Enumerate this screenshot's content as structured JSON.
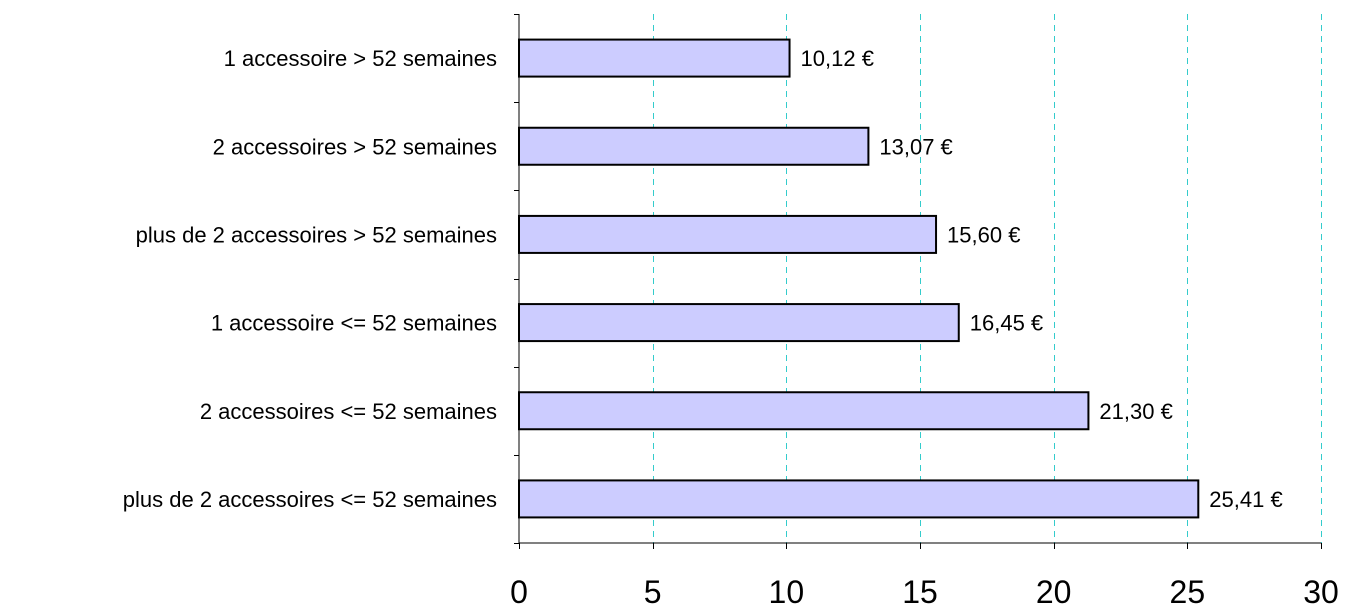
{
  "chart_data": {
    "type": "bar",
    "orientation": "horizontal",
    "categories": [
      "1 accessoire > 52 semaines",
      "2 accessoires > 52 semaines",
      "plus de 2 accessoires > 52 semaines",
      "1 accessoire <= 52 semaines",
      "2 accessoires <= 52 semaines",
      "plus de 2 accessoires <= 52 semaines"
    ],
    "values": [
      10.12,
      13.07,
      15.6,
      16.45,
      21.3,
      25.41
    ],
    "value_labels": [
      "10,12 €",
      "13,07 €",
      "15,60 €",
      "16,45 €",
      "21,30 €",
      "25,41 €"
    ],
    "xlim": [
      0,
      30
    ],
    "x_ticks": [
      0,
      5,
      10,
      15,
      20,
      25,
      30
    ],
    "x_tick_labels": [
      "0",
      "5",
      "10",
      "15",
      "20",
      "25",
      "30"
    ],
    "title": "",
    "xlabel": "",
    "ylabel": "",
    "grid": "vertical dashed",
    "colors": {
      "bar_fill": "#ccccff",
      "bar_stroke": "#000000",
      "grid": "#33cccc",
      "axis": "#000000"
    }
  }
}
